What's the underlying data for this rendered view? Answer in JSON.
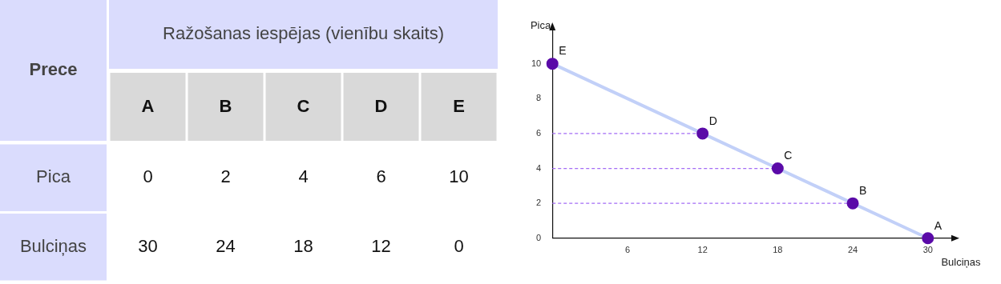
{
  "chart_data": [
    {
      "type": "heatmap",
      "title": "Ražošanas iespējas (vienību skaits)",
      "legend_title": "Prece",
      "categories": [
        "A",
        "B",
        "C",
        "D",
        "E"
      ],
      "y_categories": [
        "Pica",
        "Bulciņas"
      ],
      "cells": [
        [
          0,
          2,
          4,
          6,
          10
        ],
        [
          30,
          24,
          18,
          12,
          0
        ]
      ],
      "data_labels": true
    },
    {
      "type": "line",
      "xlabel": "Bulciņas",
      "ylabel": "Pica",
      "x": [
        30,
        24,
        18,
        12,
        0
      ],
      "series": [
        {
          "color": "#c2d0f8",
          "colors": [
            "#5a0aa8",
            "#5a0aa8",
            "#5a0aa8",
            "#5a0aa8",
            "#5a0aa8"
          ],
          "values": [
            0,
            2,
            4,
            6,
            10
          ]
        }
      ],
      "marker": "circle",
      "xlim": [
        0,
        32
      ],
      "xticks": [
        6,
        12,
        18,
        24,
        30
      ],
      "ylim": [
        0,
        12
      ],
      "yticks": [
        0,
        2,
        4,
        6,
        8,
        10
      ],
      "grid": false,
      "legend": false,
      "ref_lines": [
        {
          "axis": "y",
          "value": 6,
          "color": "#a46cf5",
          "line_style": "dashed"
        },
        {
          "axis": "y",
          "value": 4,
          "color": "#a46cf5",
          "line_style": "dashed"
        },
        {
          "axis": "y",
          "value": 2,
          "color": "#a46cf5",
          "line_style": "dashed"
        }
      ],
      "annotations": [
        {
          "text": "A",
          "x": 30,
          "y": 0
        },
        {
          "text": "B",
          "x": 24,
          "y": 2
        },
        {
          "text": "C",
          "x": 18,
          "y": 4
        },
        {
          "text": "D",
          "x": 12,
          "y": 6
        },
        {
          "text": "E",
          "x": 0,
          "y": 10
        }
      ]
    }
  ]
}
